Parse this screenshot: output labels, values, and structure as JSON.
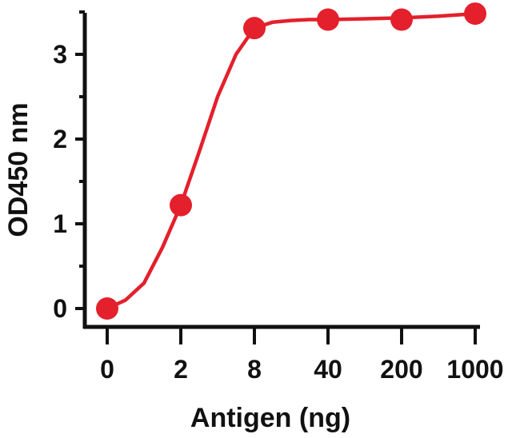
{
  "chart_data": {
    "type": "line",
    "title": "",
    "xlabel": "Antigen (ng)",
    "ylabel": "OD450 nm",
    "x_tick_labels": [
      "0",
      "2",
      "8",
      "40",
      "200",
      "1000"
    ],
    "y_tick_labels": [
      "0",
      "1",
      "2",
      "3"
    ],
    "ylim": [
      0,
      3.5
    ],
    "grid": false,
    "legend": "none",
    "series": [
      {
        "categories": [
          "0",
          "2",
          "8",
          "40",
          "200",
          "1000"
        ],
        "values": [
          0.0,
          1.22,
          3.31,
          3.41,
          3.41,
          3.48
        ],
        "color": "#e3202c",
        "marker": "circle"
      }
    ],
    "curve": {
      "x": [
        0,
        0.25,
        0.5,
        0.75,
        1.0,
        1.25,
        1.5,
        1.75,
        2.0,
        2.25,
        2.5,
        2.75,
        3.0,
        3.5,
        4.0,
        4.5,
        5.0
      ],
      "y": [
        0.0,
        0.1,
        0.3,
        0.72,
        1.22,
        1.85,
        2.5,
        3.0,
        3.31,
        3.38,
        3.4,
        3.41,
        3.41,
        3.42,
        3.43,
        3.45,
        3.48
      ]
    },
    "axis_color": "#111111"
  }
}
